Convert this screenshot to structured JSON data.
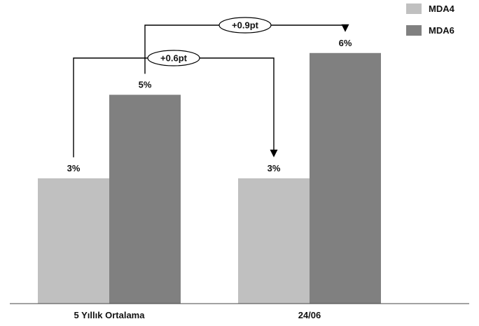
{
  "chart_data": {
    "type": "bar",
    "title": "",
    "xlabel": "",
    "ylabel": "",
    "categories": [
      "5 Yıllık Ortalama",
      "24/06"
    ],
    "series": [
      {
        "name": "MDA4",
        "values": [
          3,
          3
        ],
        "labels": [
          "3%",
          "3%"
        ],
        "color": "#c0c0c0"
      },
      {
        "name": "MDA6",
        "values": [
          5,
          6
        ],
        "labels": [
          "5%",
          "6%"
        ],
        "color": "#808080"
      }
    ],
    "ylim": [
      0,
      6.8
    ],
    "grid": false,
    "legend": "top-right",
    "annotations": [
      {
        "text": "+0.6pt",
        "from": {
          "series": 0,
          "category": 0
        },
        "to": {
          "series": 0,
          "category": 1
        }
      },
      {
        "text": "+0.9pt",
        "from": {
          "series": 1,
          "category": 0
        },
        "to": {
          "series": 1,
          "category": 1
        }
      }
    ]
  }
}
